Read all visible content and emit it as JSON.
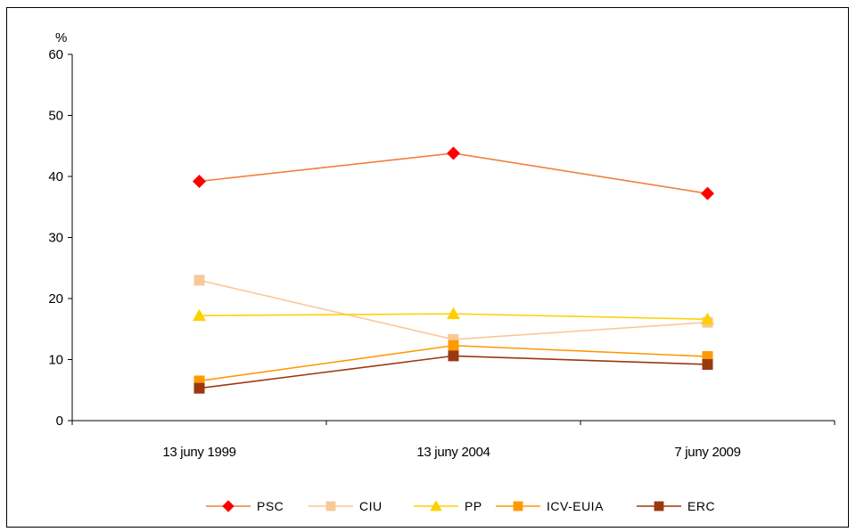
{
  "chart_data": {
    "type": "line",
    "y_unit": "%",
    "categories": [
      "13 juny 1999",
      "13 juny 2004",
      "7 juny 2009"
    ],
    "ylim": [
      0,
      60
    ],
    "yticks": [
      0,
      10,
      20,
      30,
      40,
      50,
      60
    ],
    "grid": false,
    "legend_position": "bottom",
    "series": [
      {
        "name": "PSC",
        "values": [
          39.2,
          43.8,
          37.2
        ],
        "color": "#f08040",
        "marker_color": "#ff0000",
        "marker": "diamond"
      },
      {
        "name": "CIU",
        "values": [
          23.0,
          13.3,
          16.1
        ],
        "color": "#f8c898",
        "marker_color": "#f8c898",
        "marker": "square"
      },
      {
        "name": "PP",
        "values": [
          17.2,
          17.5,
          16.6
        ],
        "color": "#ffd000",
        "marker_color": "#ffd000",
        "marker": "triangle"
      },
      {
        "name": "ICV-EUIA",
        "values": [
          6.5,
          12.3,
          10.5
        ],
        "color": "#ff9900",
        "marker_color": "#ff9900",
        "marker": "square"
      },
      {
        "name": "ERC",
        "values": [
          5.3,
          10.6,
          9.2
        ],
        "color": "#9a3810",
        "marker_color": "#9a3810",
        "marker": "square"
      }
    ]
  }
}
